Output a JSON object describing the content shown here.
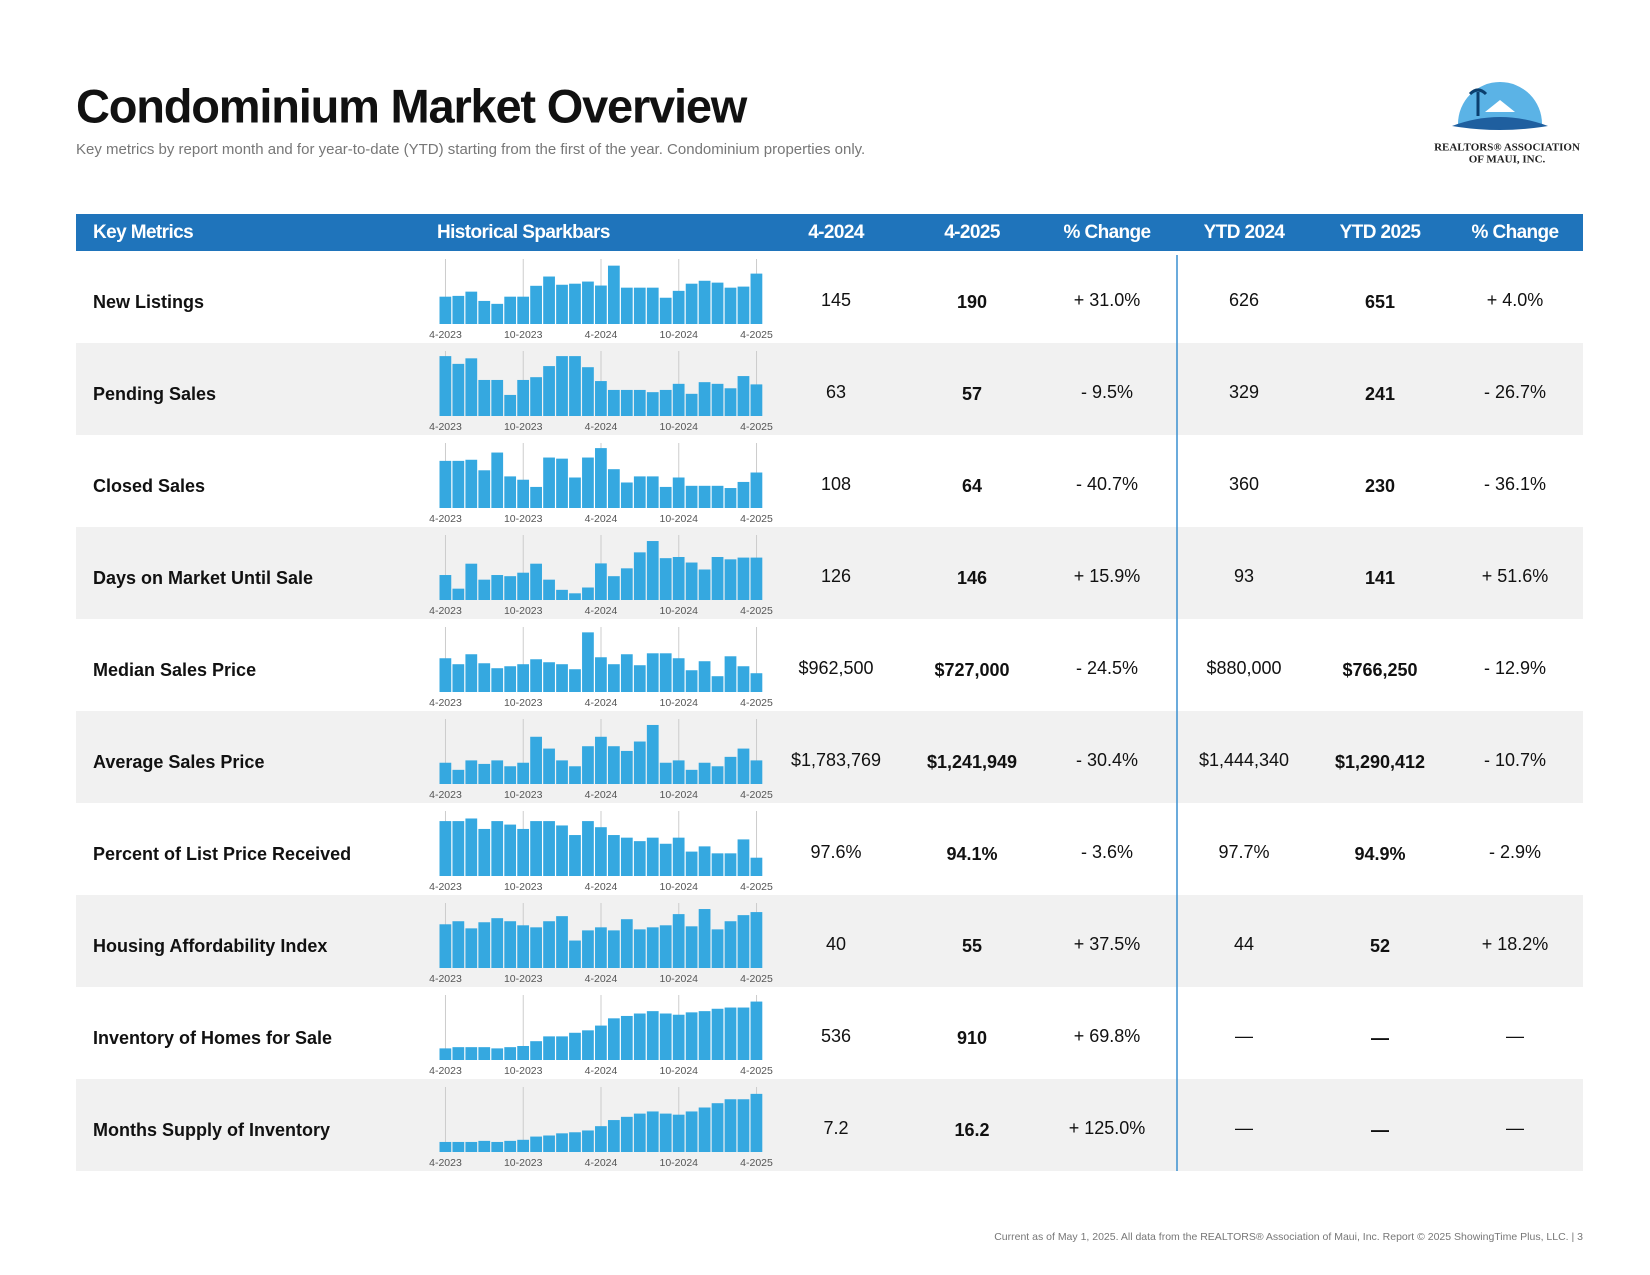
{
  "header": {
    "title": "Condominium Market Overview",
    "subtitle": "Key metrics by report month and for year-to-date (YTD) starting from the first of the year. Condominium properties only.",
    "logo_line1": "REALTORS® ASSOCIATION",
    "logo_line2": "OF MAUI, INC."
  },
  "table": {
    "columns": [
      "Key Metrics",
      "Historical Sparkbars",
      "4-2024",
      "4-2025",
      "% Change",
      "YTD 2024",
      "YTD 2025",
      "% Change"
    ],
    "spark_dates": [
      "4-2023",
      null,
      null,
      null,
      null,
      null,
      "10-2023",
      null,
      null,
      null,
      null,
      null,
      "4-2024",
      null,
      null,
      null,
      null,
      null,
      "10-2024",
      null,
      null,
      null,
      null,
      null,
      "4-2025"
    ],
    "rows": [
      {
        "metric": "New Listings",
        "cells": [
          "145",
          "190",
          "+ 31.0%",
          "626",
          "651",
          "+ 4.0%"
        ],
        "sparkbar": {
          "ylim": [
            0,
            230
          ],
          "values": [
            103,
            106,
            122,
            87,
            76,
            103,
            103,
            144,
            179,
            148,
            152,
            160,
            145,
            220,
            137,
            137,
            137,
            99,
            125,
            152,
            163,
            156,
            137,
            141,
            190
          ]
        }
      },
      {
        "metric": "Pending Sales",
        "cells": [
          "63",
          "57",
          "- 9.5%",
          "329",
          "241",
          "- 26.7%"
        ],
        "sparkbar": {
          "ylim": [
            0,
            110
          ],
          "values": [
            108,
            94,
            104,
            65,
            65,
            38,
            65,
            70,
            90,
            108,
            108,
            88,
            63,
            47,
            47,
            47,
            43,
            47,
            58,
            40,
            61,
            58,
            50,
            72,
            57
          ]
        }
      },
      {
        "metric": "Closed Sales",
        "cells": [
          "108",
          "64",
          "- 40.7%",
          "360",
          "230",
          "- 36.1%"
        ],
        "sparkbar": {
          "ylim": [
            0,
            110
          ],
          "values": [
            85,
            85,
            87,
            68,
            100,
            57,
            51,
            38,
            91,
            89,
            55,
            91,
            108,
            70,
            46,
            57,
            57,
            38,
            55,
            40,
            40,
            40,
            36,
            47,
            64
          ]
        }
      },
      {
        "metric": "Days on Market Until Sale",
        "cells": [
          "126",
          "146",
          "+ 15.9%",
          "93",
          "141",
          "+ 51.6%"
        ],
        "sparkbar": {
          "ylim": [
            0,
            210
          ],
          "values": [
            86,
            39,
            125,
            70,
            86,
            82,
            94,
            125,
            70,
            35,
            23,
            43,
            126,
            82,
            109,
            164,
            203,
            144,
            148,
            129,
            105,
            148,
            140,
            146,
            146
          ]
        }
      },
      {
        "metric": "Median Sales Price",
        "cells": [
          "$962,500",
          "$727,000",
          "- 24.5%",
          "$880,000",
          "$766,250",
          "- 12.9%"
        ],
        "sparkbar": {
          "ylim": [
            450000,
            1350000
          ],
          "values": [
            948000,
            860000,
            1007000,
            874000,
            801000,
            830000,
            860000,
            933000,
            889000,
            860000,
            786000,
            1330000,
            962500,
            860000,
            1007000,
            845000,
            1021000,
            1021000,
            948000,
            771000,
            904000,
            683000,
            977000,
            830000,
            727000
          ]
        }
      },
      {
        "metric": "Average Sales Price",
        "cells": [
          "$1,783,769",
          "$1,241,949",
          "- 30.4%",
          "$1,444,340",
          "$1,290,412",
          "- 10.7%"
        ],
        "sparkbar": {
          "ylim": [
            700000,
            2100000
          ],
          "values": [
            1188000,
            1025000,
            1242000,
            1161000,
            1242000,
            1107000,
            1188000,
            1784000,
            1513000,
            1242000,
            1107000,
            1567000,
            1783769,
            1567000,
            1459000,
            1675000,
            2055000,
            1188000,
            1242000,
            1025000,
            1188000,
            1107000,
            1323000,
            1513000,
            1241949
          ]
        }
      },
      {
        "metric": "Percent of List Price Received",
        "cells": [
          "97.6%",
          "94.1%",
          "- 3.6%",
          "97.7%",
          "94.9%",
          "- 2.9%"
        ],
        "sparkbar": {
          "ylim": [
            92,
            99
          ],
          "values": [
            98.3,
            98.3,
            98.6,
            97.4,
            98.3,
            97.9,
            97.4,
            98.3,
            98.3,
            97.8,
            96.7,
            98.3,
            97.6,
            96.7,
            96.4,
            96.0,
            96.4,
            95.7,
            96.4,
            94.8,
            95.4,
            94.6,
            94.6,
            96.2,
            94.1
          ]
        }
      },
      {
        "metric": "Housing Affordability Index",
        "cells": [
          "40",
          "55",
          "+ 37.5%",
          "44",
          "52",
          "+ 18.2%"
        ],
        "sparkbar": {
          "ylim": [
            0,
            60
          ],
          "values": [
            43,
            46,
            39,
            45,
            49,
            46,
            42,
            40,
            46,
            51,
            27,
            37,
            40,
            37,
            48,
            38,
            40,
            42,
            53,
            41,
            58,
            38,
            46,
            52,
            55
          ]
        }
      },
      {
        "metric": "Inventory of Homes for Sale",
        "cells": [
          "536",
          "910",
          "+ 69.8%",
          "—",
          "—",
          "—"
        ],
        "sparkbar": {
          "ylim": [
            0,
            950
          ],
          "values": [
            181,
            200,
            200,
            200,
            181,
            200,
            218,
            293,
            368,
            368,
            424,
            462,
            536,
            649,
            686,
            724,
            761,
            724,
            705,
            742,
            761,
            798,
            817,
            817,
            910
          ]
        }
      },
      {
        "metric": "Months Supply of Inventory",
        "cells": [
          "7.2",
          "16.2",
          "+ 125.0%",
          "—",
          "—",
          "—"
        ],
        "sparkbar": {
          "ylim": [
            0,
            17
          ],
          "values": [
            2.8,
            2.8,
            2.8,
            3.1,
            2.8,
            3.1,
            3.4,
            4.3,
            4.6,
            5.2,
            5.5,
            6.0,
            7.2,
            8.9,
            9.8,
            10.7,
            11.3,
            10.7,
            10.4,
            11.3,
            12.4,
            13.6,
            14.7,
            14.7,
            16.2
          ]
        }
      }
    ]
  },
  "footer": "Current as of May 1, 2025. All data from the REALTORS® Association of Maui, Inc. Report © 2025 ShowingTime Plus, LLC.  |  3"
}
